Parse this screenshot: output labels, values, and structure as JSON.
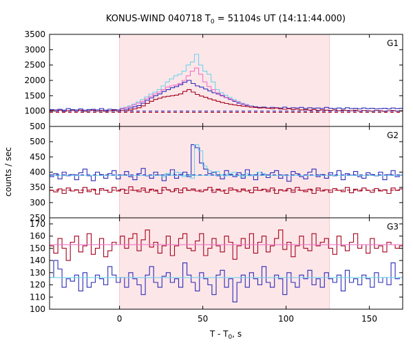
{
  "chart_data": {
    "type": "line",
    "title": "KONUS-WIND 040718 T",
    "title_sub": "0",
    "title_rest": " = 51104s UT (14:11:44.000)",
    "xlabel": "T - T",
    "xlabel_sub": "0",
    "xlabel_rest": ", s",
    "ylabel": "counts / sec",
    "xlim": [
      -42,
      170
    ],
    "x_ticks": [
      0,
      50,
      100,
      150
    ],
    "x_tick_labels": [
      "0",
      "50",
      "100",
      "150"
    ],
    "shaded_interval": [
      0,
      126
    ],
    "colors": {
      "shade": "#fde6e8",
      "dark_red": "#a3001c",
      "dark_blue": "#2a2ab8",
      "light_blue": "#6dd3ee",
      "pink": "#ee72c8"
    },
    "panels": [
      {
        "name": "G1",
        "ylim": [
          500,
          3500
        ],
        "y_ticks": [
          500,
          1000,
          1500,
          2000,
          2500,
          3000,
          3500
        ],
        "y_tick_labels": [
          "500",
          "1000",
          "1500",
          "2000",
          "2500",
          "3000",
          "3500"
        ],
        "series": [
          {
            "color": "dark_blue",
            "style": "step",
            "x0": -42,
            "dx": 2.5,
            "values": [
              1050,
              1040,
              1060,
              1030,
              1080,
              1050,
              1040,
              1070,
              1030,
              1050,
              1060,
              1040,
              1080,
              1030,
              1060,
              1050,
              1040,
              1070,
              1060,
              1100,
              1140,
              1180,
              1260,
              1350,
              1430,
              1500,
              1560,
              1640,
              1700,
              1760,
              1800,
              1860,
              1940,
              2000,
              1900,
              1820,
              1780,
              1720,
              1660,
              1600,
              1560,
              1500,
              1440,
              1380,
              1320,
              1260,
              1220,
              1180,
              1160,
              1140,
              1120,
              1130,
              1100,
              1120,
              1110,
              1100,
              1130,
              1090,
              1110,
              1100,
              1120,
              1080,
              1110,
              1090,
              1100,
              1080,
              1120,
              1090,
              1080,
              1100,
              1070,
              1110,
              1080,
              1090,
              1070,
              1100,
              1080,
              1090,
              1070,
              1080,
              1090,
              1070,
              1100,
              1080,
              1090
            ]
          },
          {
            "color": "light_blue",
            "style": "step",
            "x0": 0,
            "dx": 2.5,
            "values": [
              1100,
              1130,
              1170,
              1230,
              1300,
              1380,
              1460,
              1550,
              1620,
              1700,
              1820,
              1950,
              2050,
              2150,
              2200,
              2300,
              2500,
              2600,
              2850,
              2500,
              2300,
              2200,
              1950,
              1700,
              1600,
              1520,
              1450,
              1380,
              1320,
              1260,
              1220,
              1180
            ]
          },
          {
            "color": "pink",
            "style": "step",
            "x0": 0,
            "dx": 2.5,
            "values": [
              1080,
              1110,
              1150,
              1200,
              1260,
              1320,
              1400,
              1480,
              1560,
              1620,
              1700,
              1780,
              1820,
              1850,
              1900,
              2000,
              2150,
              2300,
              2400,
              2200,
              1950,
              1800,
              1700,
              1600,
              1520,
              1450,
              1400,
              1340,
              1290,
              1240,
              1200,
              1160
            ]
          },
          {
            "color": "dark_red",
            "style": "step",
            "x0": -42,
            "dx": 2.5,
            "values": [
              1020,
              1000,
              1030,
              990,
              1010,
              1020,
              1000,
              1030,
              990,
              1010,
              1030,
              1000,
              1020,
              990,
              1010,
              1030,
              1000,
              1020,
              1010,
              1040,
              1070,
              1110,
              1170,
              1250,
              1320,
              1380,
              1420,
              1460,
              1480,
              1500,
              1520,
              1560,
              1640,
              1700,
              1620,
              1540,
              1490,
              1450,
              1400,
              1360,
              1320,
              1280,
              1250,
              1220,
              1200,
              1180,
              1160,
              1150,
              1130,
              1120,
              1100,
              1110,
              1090,
              1080,
              1100,
              1070,
              1060,
              1080,
              1050,
              1060,
              1040,
              1050,
              1030,
              1050,
              1020,
              1040,
              1030,
              1020,
              1040,
              1010,
              1030,
              1020,
              1010,
              1030,
              1000,
              1020,
              1010,
              1000,
              1020,
              1010,
              990,
              1010,
              1020,
              1000,
              1010
            ]
          },
          {
            "color": "dark_blue",
            "style": "dashed",
            "y": 1000
          },
          {
            "color": "dark_red",
            "style": "dashed",
            "y": 960
          }
        ]
      },
      {
        "name": "G2",
        "ylim": [
          250,
          550
        ],
        "y_ticks": [
          250,
          300,
          350,
          400,
          450,
          500
        ],
        "y_tick_labels": [
          "250",
          "300",
          "350",
          "400",
          "450",
          "500"
        ],
        "series": [
          {
            "color": "dark_blue",
            "style": "step",
            "x0": -42,
            "dx": 2.5,
            "values": [
              385,
              395,
              378,
              400,
              388,
              392,
              375,
              398,
              410,
              388,
              372,
              400,
              392,
              380,
              395,
              405,
              378,
              390,
              402,
              385,
              375,
              395,
              412,
              388,
              380,
              400,
              390,
              372,
              395,
              408,
              380,
              392,
              400,
              385,
              490,
              480,
              430,
              410,
              395,
              400,
              388,
              378,
              405,
              392,
              385,
              398,
              380,
              408,
              390,
              375,
              400,
              392,
              382,
              398,
              405,
              380,
              390,
              370,
              402,
              395,
              385,
              378,
              400,
              410,
              385,
              392,
              380,
              398,
              388,
              405,
              375,
              395,
              390,
              402,
              385,
              380,
              398,
              392,
              388,
              400,
              375,
              392,
              405,
              385,
              390
            ]
          },
          {
            "color": "light_blue",
            "style": "step",
            "x0": 25,
            "dx": 2.5,
            "values": [
              385,
              395,
              390,
              400,
              398,
              385,
              392,
              380,
              490,
              470,
              420,
              405,
              398,
              402,
              392,
              388,
              395,
              400,
              390,
              385,
              395,
              388,
              392,
              400,
              395,
              390
            ]
          },
          {
            "color": "dark_red",
            "style": "step",
            "x0": -42,
            "dx": 2.5,
            "values": [
              340,
              335,
              345,
              330,
              348,
              338,
              342,
              332,
              350,
              336,
              344,
              328,
              346,
              340,
              334,
              350,
              338,
              344,
              330,
              352,
              340,
              336,
              348,
              334,
              344,
              338,
              330,
              350,
              342,
              336,
              346,
              332,
              348,
              340,
              345,
              338,
              336,
              342,
              350,
              334,
              344,
              338,
              330,
              348,
              342,
              336,
              345,
              338,
              332,
              350,
              340,
              344,
              336,
              348,
              330,
              342,
              338,
              346,
              334,
              350,
              340,
              336,
              344,
              330,
              348,
              338,
              342,
              334,
              346,
              340,
              336,
              350,
              332,
              344,
              338,
              348,
              340,
              334,
              346,
              338,
              342,
              330,
              348,
              340,
              345
            ]
          },
          {
            "color": "light_blue",
            "style": "solid",
            "y": 389
          },
          {
            "color": "dark_blue",
            "style": "dashed",
            "y": 391
          },
          {
            "color": "dark_red",
            "style": "dashed",
            "y": 341
          }
        ]
      },
      {
        "name": "G3",
        "ylim": [
          100,
          175
        ],
        "y_ticks": [
          100,
          110,
          120,
          130,
          140,
          150,
          160,
          170
        ],
        "y_tick_labels": [
          "100",
          "110",
          "120",
          "130",
          "140",
          "150",
          "160",
          "170"
        ],
        "series": [
          {
            "color": "dark_red",
            "style": "step",
            "x0": -42,
            "dx": 2.5,
            "values": [
              152,
              146,
              158,
              150,
              140,
              155,
              160,
              147,
              152,
              162,
              145,
              150,
              158,
              143,
              148,
              155,
              153,
              160,
              150,
              158,
              162,
              148,
              157,
              165,
              151,
              155,
              146,
              152,
              160,
              144,
              152,
              158,
              162,
              150,
              148,
              156,
              162,
              144,
              150,
              158,
              152,
              147,
              160,
              155,
              141,
              152,
              158,
              150,
              162,
              146,
              155,
              160,
              147,
              152,
              158,
              165,
              149,
              155,
              143,
              152,
              160,
              150,
              148,
              162,
              152,
              155,
              158,
              150,
              145,
              160,
              152,
              148,
              155,
              162,
              150,
              153,
              146,
              158,
              150,
              152,
              147,
              155,
              153,
              150,
              152
            ]
          },
          {
            "color": "dark_blue",
            "style": "step",
            "x0": -42,
            "dx": 2.5,
            "values": [
              126,
              140,
              133,
              118,
              125,
              123,
              128,
              115,
              130,
              118,
              122,
              128,
              125,
              120,
              135,
              128,
              122,
              126,
              118,
              130,
              125,
              120,
              112,
              128,
              135,
              122,
              118,
              127,
              130,
              122,
              125,
              118,
              138,
              128,
              122,
              115,
              130,
              125,
              120,
              112,
              128,
              132,
              118,
              125,
              106,
              122,
              128,
              118,
              130,
              125,
              120,
              135,
              122,
              118,
              128,
              125,
              112,
              130,
              122,
              118,
              128,
              125,
              132,
              120,
              125,
              118,
              130,
              125,
              122,
              128,
              115,
              132,
              122,
              125,
              120,
              128,
              125,
              118,
              130,
              122,
              126,
              120,
              138,
              125,
              126
            ]
          },
          {
            "color": "pink",
            "style": "solid",
            "y": 153
          },
          {
            "color": "light_blue",
            "style": "solid",
            "y": 126
          }
        ]
      }
    ]
  }
}
